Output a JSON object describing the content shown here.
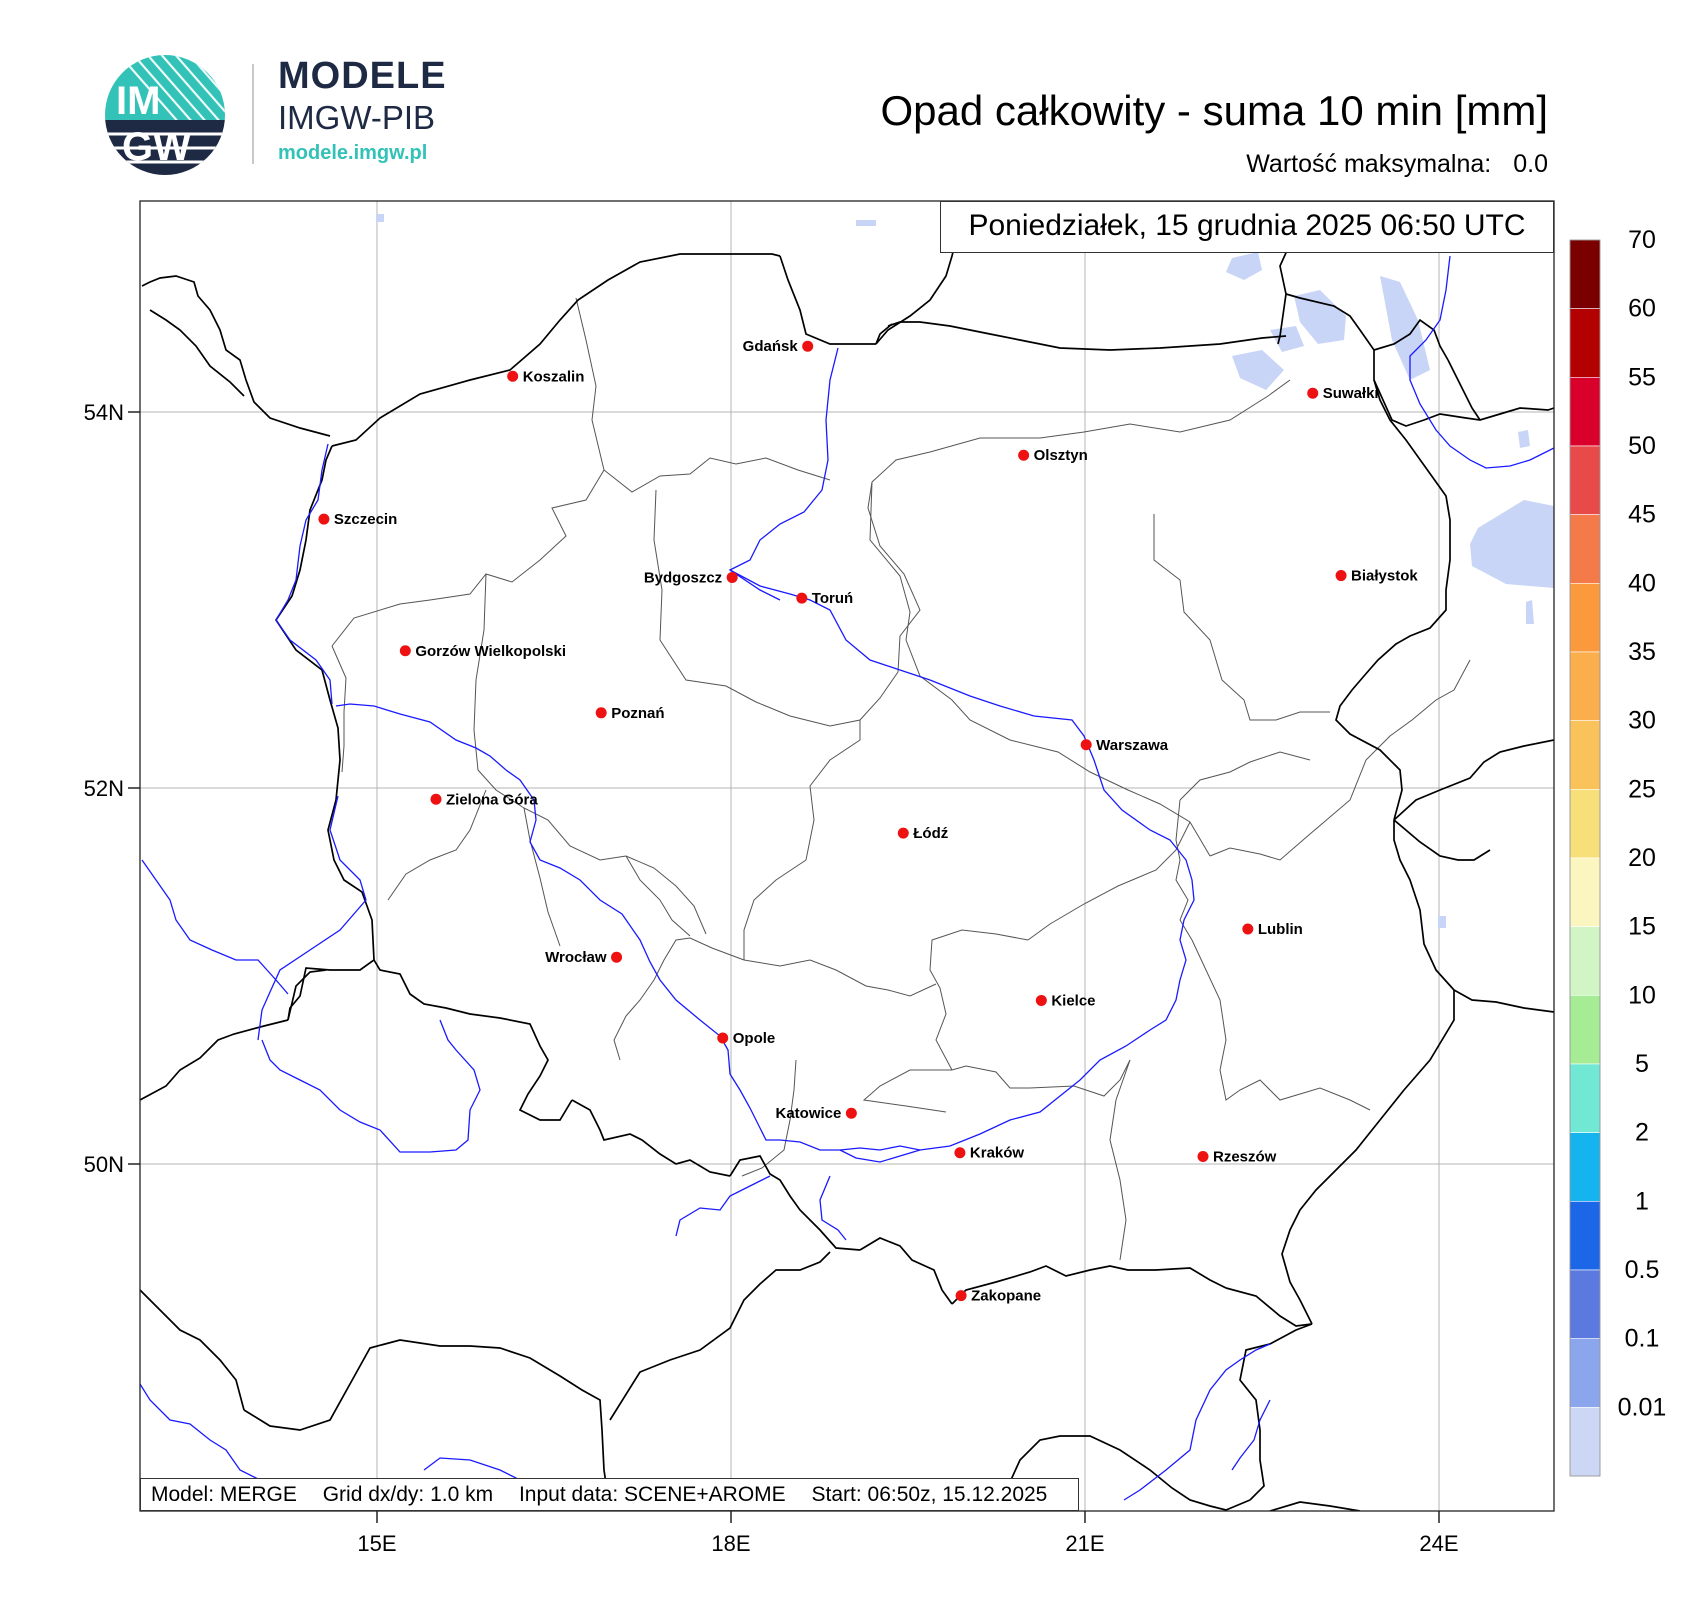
{
  "logo": {
    "circle_text_top": "IM",
    "circle_text_bottom": "GW",
    "brand": "MODELE",
    "subtitle": "IMGW-PIB",
    "url": "modele.imgw.pl",
    "colors": {
      "navy": "#1e2a44",
      "teal": "#33c2b8"
    }
  },
  "title": "Opad całkowity - suma 10 min [mm]",
  "max_value": {
    "label": "Wartość maksymalna:",
    "value": "0.0"
  },
  "date_box": "Poniedziałek, 15 grudnia 2025 06:50 UTC",
  "info_bar": {
    "model": "Model: MERGE",
    "grid": "Grid dx/dy: 1.0 km",
    "input": "Input data: SCENE+AROME",
    "start": "Start: 06:50z, 15.12.2025"
  },
  "axes": {
    "lon_ticks": [
      {
        "value": 15,
        "label": "15E"
      },
      {
        "value": 18,
        "label": "18E"
      },
      {
        "value": 21,
        "label": "21E"
      },
      {
        "value": 24,
        "label": "24E"
      }
    ],
    "lat_ticks": [
      {
        "value": 54,
        "label": "54N"
      },
      {
        "value": 52,
        "label": "52N"
      },
      {
        "value": 50,
        "label": "50N"
      }
    ],
    "lon_range": [
      13.0,
      25.0
    ],
    "lat_range": [
      48.1,
      55.1
    ],
    "grid": true
  },
  "cities": [
    {
      "name": "Gdańsk",
      "lon": 18.65,
      "lat": 54.35,
      "label_side": "left"
    },
    {
      "name": "Koszalin",
      "lon": 16.15,
      "lat": 54.19,
      "label_side": "right"
    },
    {
      "name": "Suwałki",
      "lon": 22.93,
      "lat": 54.1,
      "label_side": "right"
    },
    {
      "name": "Olsztyn",
      "lon": 20.48,
      "lat": 53.77,
      "label_side": "right"
    },
    {
      "name": "Szczecin",
      "lon": 14.55,
      "lat": 53.43,
      "label_side": "right"
    },
    {
      "name": "Białystok",
      "lon": 23.17,
      "lat": 53.13,
      "label_side": "right"
    },
    {
      "name": "Bydgoszcz",
      "lon": 18.01,
      "lat": 53.12,
      "label_side": "left"
    },
    {
      "name": "Toruń",
      "lon": 18.6,
      "lat": 53.01,
      "label_side": "right"
    },
    {
      "name": "Gorzów Wielkopolski",
      "lon": 15.24,
      "lat": 52.73,
      "label_side": "right"
    },
    {
      "name": "Poznań",
      "lon": 16.9,
      "lat": 52.4,
      "label_side": "right"
    },
    {
      "name": "Warszawa",
      "lon": 21.01,
      "lat": 52.23,
      "label_side": "right"
    },
    {
      "name": "Zielona Góra",
      "lon": 15.5,
      "lat": 51.94,
      "label_side": "right"
    },
    {
      "name": "Łódź",
      "lon": 19.46,
      "lat": 51.76,
      "label_side": "right"
    },
    {
      "name": "Lublin",
      "lon": 22.38,
      "lat": 51.25,
      "label_side": "right"
    },
    {
      "name": "Wrocław",
      "lon": 17.03,
      "lat": 51.1,
      "label_side": "left"
    },
    {
      "name": "Kielce",
      "lon": 20.63,
      "lat": 50.87,
      "label_side": "right"
    },
    {
      "name": "Opole",
      "lon": 17.93,
      "lat": 50.67,
      "label_side": "right"
    },
    {
      "name": "Katowice",
      "lon": 19.02,
      "lat": 50.27,
      "label_side": "left"
    },
    {
      "name": "Kraków",
      "lon": 19.94,
      "lat": 50.06,
      "label_side": "right"
    },
    {
      "name": "Rzeszów",
      "lon": 22.0,
      "lat": 50.04,
      "label_side": "right"
    },
    {
      "name": "Zakopane",
      "lon": 19.95,
      "lat": 49.3,
      "label_side": "right"
    }
  ],
  "colorbar": {
    "labels": [
      "70",
      "60",
      "55",
      "50",
      "45",
      "40",
      "35",
      "30",
      "25",
      "20",
      "15",
      "10",
      "5",
      "2",
      "1",
      "0.5",
      "0.1",
      "0.01"
    ],
    "colors": [
      "#7a0000",
      "#b30000",
      "#d9002b",
      "#e84a4a",
      "#f47a4a",
      "#fa9a3c",
      "#fbae4c",
      "#f9c25a",
      "#f7df7a",
      "#fbf6c0",
      "#d2f5c6",
      "#a6ec94",
      "#70e8d4",
      "#16b4ef",
      "#1c66e8",
      "#5c79e0",
      "#8ba6ec",
      "#ccd7f5"
    ]
  },
  "styles": {
    "river_color": "#1a1aff",
    "border_color": "#000000",
    "region_color": "#555555",
    "lake_color": "#c9d5f7",
    "city_dot_color": "#ee1111",
    "grid_color": "#b4b4b4"
  }
}
